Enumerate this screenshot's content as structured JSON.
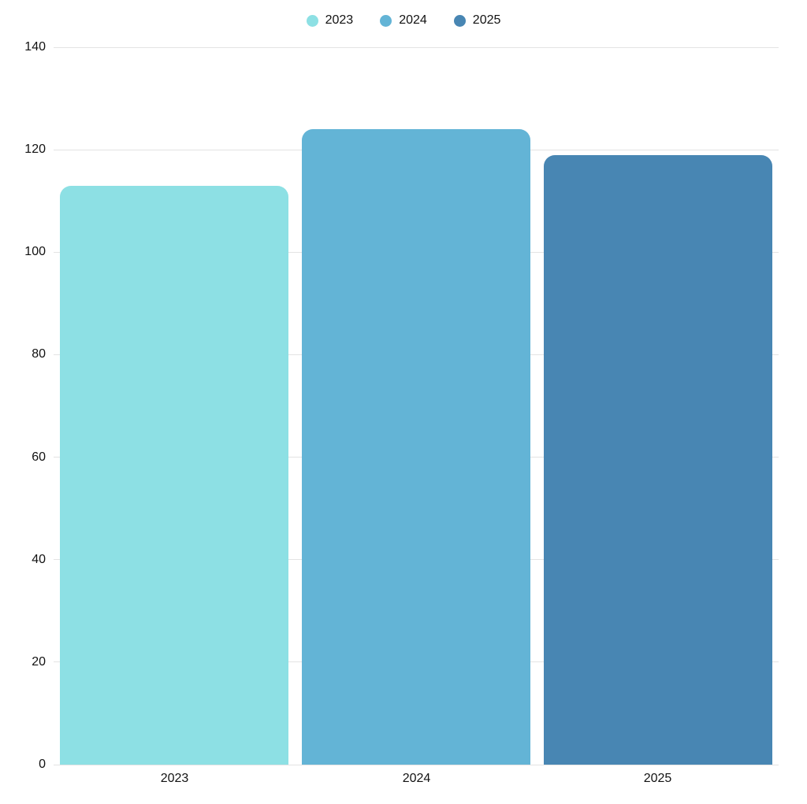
{
  "chart_data": {
    "type": "bar",
    "title": "",
    "xlabel": "",
    "ylabel": "",
    "categories": [
      "2023",
      "2024",
      "2025"
    ],
    "values": [
      113,
      124,
      119
    ],
    "colors": [
      "#8DE0E4",
      "#63B4D6",
      "#4886B3"
    ],
    "legend": [
      {
        "label": "2023",
        "color": "#8DE0E4"
      },
      {
        "label": "2024",
        "color": "#63B4D6"
      },
      {
        "label": "2025",
        "color": "#4886B3"
      }
    ],
    "legend_position": "top-center",
    "ylim": [
      0,
      140
    ],
    "yticks": [
      0,
      20,
      40,
      60,
      80,
      100,
      120,
      140
    ],
    "grid": true,
    "grid_color": "#E3E3E3",
    "text_color": "#121212",
    "background_color": "#FFFFFF",
    "bar_corner_radius": 14
  }
}
